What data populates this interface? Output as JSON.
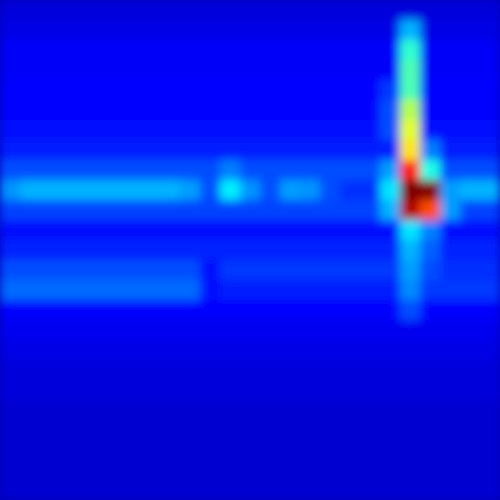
{
  "chart_data": {
    "type": "heatmap",
    "tick_labels": false,
    "zlim": [
      0,
      1
    ],
    "cells": [
      [
        0.09,
        0.09,
        0.09,
        0.09,
        0.09,
        0.09,
        0.09,
        0.09,
        0.09,
        0.09,
        0.09,
        0.09,
        0.09,
        0.09,
        0.09,
        0.09,
        0.09,
        0.09,
        0.09,
        0.09,
        0.09,
        0.09,
        0.09,
        0.09,
        0.09
      ],
      [
        0.1,
        0.1,
        0.1,
        0.1,
        0.1,
        0.1,
        0.1,
        0.1,
        0.1,
        0.1,
        0.1,
        0.1,
        0.1,
        0.1,
        0.1,
        0.1,
        0.1,
        0.1,
        0.1,
        0.1,
        0.3,
        0.1,
        0.1,
        0.1,
        0.1
      ],
      [
        0.12,
        0.12,
        0.12,
        0.12,
        0.12,
        0.12,
        0.12,
        0.12,
        0.12,
        0.12,
        0.12,
        0.12,
        0.12,
        0.12,
        0.12,
        0.12,
        0.12,
        0.12,
        0.12,
        0.12,
        0.42,
        0.12,
        0.12,
        0.12,
        0.12
      ],
      [
        0.12,
        0.12,
        0.12,
        0.12,
        0.12,
        0.12,
        0.12,
        0.12,
        0.12,
        0.12,
        0.12,
        0.12,
        0.12,
        0.12,
        0.12,
        0.12,
        0.12,
        0.12,
        0.12,
        0.12,
        0.45,
        0.12,
        0.12,
        0.12,
        0.12
      ],
      [
        0.13,
        0.13,
        0.13,
        0.13,
        0.13,
        0.13,
        0.13,
        0.13,
        0.13,
        0.13,
        0.13,
        0.13,
        0.13,
        0.13,
        0.13,
        0.13,
        0.13,
        0.13,
        0.13,
        0.18,
        0.45,
        0.13,
        0.13,
        0.13,
        0.13
      ],
      [
        0.13,
        0.13,
        0.13,
        0.13,
        0.13,
        0.13,
        0.13,
        0.13,
        0.13,
        0.13,
        0.13,
        0.13,
        0.13,
        0.13,
        0.13,
        0.13,
        0.13,
        0.13,
        0.13,
        0.2,
        0.55,
        0.13,
        0.13,
        0.13,
        0.13
      ],
      [
        0.14,
        0.14,
        0.14,
        0.14,
        0.14,
        0.14,
        0.14,
        0.14,
        0.14,
        0.14,
        0.14,
        0.14,
        0.14,
        0.14,
        0.14,
        0.14,
        0.14,
        0.14,
        0.14,
        0.2,
        0.6,
        0.14,
        0.14,
        0.14,
        0.14
      ],
      [
        0.15,
        0.15,
        0.15,
        0.15,
        0.15,
        0.15,
        0.15,
        0.15,
        0.15,
        0.15,
        0.15,
        0.15,
        0.15,
        0.15,
        0.15,
        0.15,
        0.15,
        0.15,
        0.15,
        0.15,
        0.65,
        0.25,
        0.15,
        0.15,
        0.15
      ],
      [
        0.2,
        0.2,
        0.2,
        0.2,
        0.2,
        0.2,
        0.2,
        0.2,
        0.2,
        0.2,
        0.2,
        0.25,
        0.2,
        0.2,
        0.2,
        0.2,
        0.2,
        0.2,
        0.2,
        0.28,
        0.85,
        0.4,
        0.2,
        0.2,
        0.2
      ],
      [
        0.27,
        0.3,
        0.3,
        0.3,
        0.3,
        0.3,
        0.3,
        0.3,
        0.3,
        0.28,
        0.2,
        0.36,
        0.27,
        0.2,
        0.28,
        0.27,
        0.2,
        0.17,
        0.17,
        0.35,
        1.0,
        1.0,
        0.28,
        0.3,
        0.3
      ],
      [
        0.19,
        0.19,
        0.19,
        0.19,
        0.19,
        0.19,
        0.19,
        0.19,
        0.19,
        0.19,
        0.19,
        0.19,
        0.19,
        0.19,
        0.19,
        0.19,
        0.19,
        0.19,
        0.19,
        0.3,
        0.95,
        0.8,
        0.28,
        0.19,
        0.19
      ],
      [
        0.14,
        0.14,
        0.14,
        0.14,
        0.14,
        0.14,
        0.14,
        0.14,
        0.14,
        0.14,
        0.14,
        0.14,
        0.14,
        0.14,
        0.14,
        0.14,
        0.14,
        0.14,
        0.14,
        0.14,
        0.35,
        0.25,
        0.14,
        0.14,
        0.14
      ],
      [
        0.16,
        0.16,
        0.16,
        0.16,
        0.16,
        0.16,
        0.16,
        0.16,
        0.16,
        0.16,
        0.16,
        0.16,
        0.16,
        0.16,
        0.16,
        0.16,
        0.16,
        0.16,
        0.16,
        0.16,
        0.3,
        0.22,
        0.16,
        0.16,
        0.16
      ],
      [
        0.2,
        0.2,
        0.2,
        0.2,
        0.2,
        0.2,
        0.2,
        0.2,
        0.2,
        0.2,
        0.14,
        0.18,
        0.18,
        0.18,
        0.18,
        0.18,
        0.18,
        0.18,
        0.18,
        0.18,
        0.28,
        0.2,
        0.17,
        0.17,
        0.17
      ],
      [
        0.23,
        0.23,
        0.23,
        0.23,
        0.23,
        0.23,
        0.23,
        0.23,
        0.23,
        0.23,
        0.14,
        0.15,
        0.15,
        0.15,
        0.15,
        0.15,
        0.15,
        0.15,
        0.15,
        0.15,
        0.26,
        0.18,
        0.18,
        0.18,
        0.18
      ],
      [
        0.13,
        0.13,
        0.13,
        0.13,
        0.13,
        0.13,
        0.13,
        0.13,
        0.13,
        0.13,
        0.13,
        0.13,
        0.13,
        0.13,
        0.13,
        0.13,
        0.13,
        0.13,
        0.13,
        0.13,
        0.2,
        0.13,
        0.13,
        0.13,
        0.13
      ],
      [
        0.11,
        0.11,
        0.11,
        0.11,
        0.11,
        0.11,
        0.11,
        0.11,
        0.11,
        0.11,
        0.11,
        0.11,
        0.11,
        0.11,
        0.11,
        0.11,
        0.11,
        0.11,
        0.11,
        0.11,
        0.11,
        0.11,
        0.11,
        0.11,
        0.11
      ],
      [
        0.1,
        0.1,
        0.1,
        0.1,
        0.1,
        0.1,
        0.1,
        0.1,
        0.1,
        0.1,
        0.1,
        0.1,
        0.1,
        0.1,
        0.1,
        0.1,
        0.1,
        0.1,
        0.1,
        0.1,
        0.1,
        0.1,
        0.1,
        0.1,
        0.1
      ],
      [
        0.09,
        0.09,
        0.09,
        0.09,
        0.09,
        0.09,
        0.09,
        0.09,
        0.09,
        0.09,
        0.09,
        0.09,
        0.09,
        0.09,
        0.09,
        0.09,
        0.09,
        0.09,
        0.09,
        0.09,
        0.09,
        0.09,
        0.09,
        0.09,
        0.09
      ],
      [
        0.09,
        0.09,
        0.09,
        0.09,
        0.09,
        0.09,
        0.09,
        0.09,
        0.09,
        0.09,
        0.09,
        0.09,
        0.09,
        0.09,
        0.09,
        0.09,
        0.09,
        0.09,
        0.09,
        0.09,
        0.09,
        0.09,
        0.09,
        0.09,
        0.09
      ],
      [
        0.08,
        0.08,
        0.08,
        0.08,
        0.08,
        0.08,
        0.08,
        0.08,
        0.08,
        0.08,
        0.08,
        0.08,
        0.08,
        0.08,
        0.08,
        0.08,
        0.08,
        0.08,
        0.08,
        0.08,
        0.08,
        0.08,
        0.08,
        0.08,
        0.08
      ],
      [
        0.08,
        0.08,
        0.08,
        0.08,
        0.08,
        0.08,
        0.08,
        0.08,
        0.08,
        0.08,
        0.08,
        0.08,
        0.08,
        0.08,
        0.08,
        0.08,
        0.08,
        0.08,
        0.08,
        0.08,
        0.08,
        0.08,
        0.08,
        0.08,
        0.08
      ],
      [
        0.08,
        0.08,
        0.08,
        0.08,
        0.08,
        0.08,
        0.08,
        0.08,
        0.08,
        0.08,
        0.08,
        0.08,
        0.08,
        0.08,
        0.08,
        0.08,
        0.08,
        0.08,
        0.08,
        0.08,
        0.08,
        0.08,
        0.08,
        0.08,
        0.08
      ],
      [
        0.08,
        0.08,
        0.08,
        0.08,
        0.08,
        0.08,
        0.08,
        0.08,
        0.08,
        0.08,
        0.08,
        0.08,
        0.08,
        0.08,
        0.08,
        0.08,
        0.08,
        0.08,
        0.08,
        0.08,
        0.08,
        0.08,
        0.08,
        0.08,
        0.08
      ],
      [
        0.08,
        0.08,
        0.08,
        0.08,
        0.08,
        0.08,
        0.08,
        0.08,
        0.08,
        0.08,
        0.08,
        0.08,
        0.08,
        0.08,
        0.08,
        0.08,
        0.08,
        0.08,
        0.08,
        0.08,
        0.08,
        0.08,
        0.08,
        0.08,
        0.08
      ]
    ]
  }
}
